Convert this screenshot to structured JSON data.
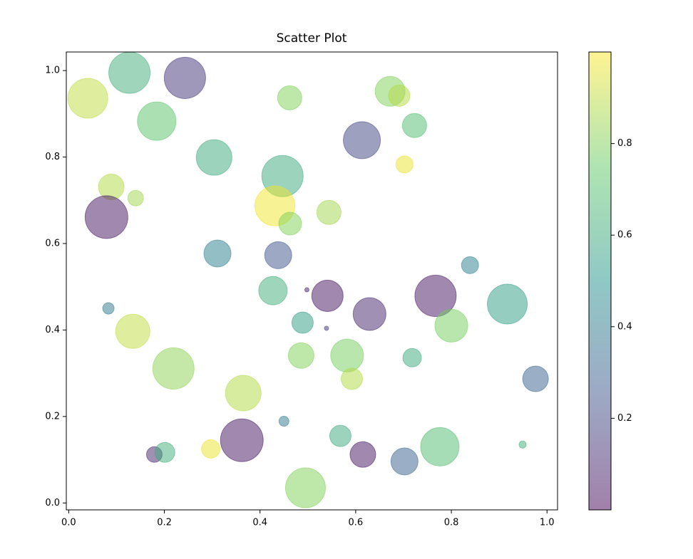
{
  "chart_data": {
    "type": "scatter",
    "title": "Scatter Plot",
    "x": [
      0.04,
      0.127,
      0.243,
      0.462,
      0.672,
      0.691,
      0.723,
      0.184,
      0.613,
      0.304,
      0.447,
      0.702,
      0.089,
      0.14,
      0.431,
      0.079,
      0.544,
      0.463,
      0.311,
      0.438,
      0.839,
      0.427,
      0.498,
      0.541,
      0.767,
      0.917,
      0.083,
      0.629,
      0.489,
      0.8,
      0.134,
      0.539,
      0.486,
      0.582,
      0.718,
      0.976,
      0.219,
      0.592,
      0.365,
      0.45,
      0.568,
      0.362,
      0.179,
      0.201,
      0.297,
      0.615,
      0.776,
      0.949,
      0.702,
      0.495
    ],
    "y": [
      0.936,
      0.995,
      0.983,
      0.937,
      0.952,
      0.942,
      0.873,
      0.883,
      0.839,
      0.799,
      0.756,
      0.783,
      0.731,
      0.705,
      0.687,
      0.661,
      0.672,
      0.646,
      0.577,
      0.573,
      0.55,
      0.491,
      0.493,
      0.479,
      0.479,
      0.46,
      0.45,
      0.437,
      0.417,
      0.41,
      0.397,
      0.404,
      0.341,
      0.341,
      0.336,
      0.287,
      0.311,
      0.287,
      0.254,
      0.189,
      0.155,
      0.145,
      0.112,
      0.117,
      0.125,
      0.112,
      0.13,
      0.135,
      0.096,
      0.035
    ],
    "sizes": [
      1628,
      1746,
      1746,
      600,
      915,
      467,
      600,
      1513,
      1403,
      1298,
      1746,
      299,
      673,
      251,
      1628,
      1868,
      600,
      531,
      749,
      749,
      299,
      830,
      19,
      1005,
      1746,
      1628,
      133,
      1098,
      467,
      1098,
      1196,
      19,
      673,
      1098,
      351,
      673,
      1746,
      467,
      1298,
      102,
      467,
      1868,
      251,
      407,
      351,
      673,
      1513,
      52,
      749,
      1628
    ],
    "colors": [
      0.9,
      0.62,
      0.15,
      0.8,
      0.8,
      0.88,
      0.68,
      0.72,
      0.2,
      0.6,
      0.6,
      0.97,
      0.88,
      0.85,
      0.98,
      0.05,
      0.85,
      0.8,
      0.42,
      0.25,
      0.42,
      0.62,
      0.1,
      0.05,
      0.05,
      0.55,
      0.4,
      0.1,
      0.55,
      0.78,
      0.9,
      0.15,
      0.8,
      0.78,
      0.6,
      0.3,
      0.82,
      0.88,
      0.88,
      0.4,
      0.6,
      0.05,
      0.1,
      0.62,
      0.97,
      0.05,
      0.68,
      0.62,
      0.3,
      0.8
    ],
    "colormap": [
      "#440154",
      "#3b528b",
      "#21918c",
      "#5ec962",
      "#fde725"
    ],
    "alpha": 0.5,
    "xlim": [
      -0.005,
      1.022
    ],
    "ylim": [
      -0.016,
      1.043
    ],
    "xticks": [
      {
        "value": 0,
        "label": "0.0"
      },
      {
        "value": 0.2,
        "label": "0.2"
      },
      {
        "value": 0.4,
        "label": "0.4"
      },
      {
        "value": 0.6,
        "label": "0.6"
      },
      {
        "value": 0.8,
        "label": "0.8"
      },
      {
        "value": 1,
        "label": "1.0"
      }
    ],
    "yticks": [
      {
        "value": 0,
        "label": "0.0"
      },
      {
        "value": 0.2,
        "label": "0.2"
      },
      {
        "value": 0.4,
        "label": "0.4"
      },
      {
        "value": 0.6,
        "label": "0.6"
      },
      {
        "value": 0.8,
        "label": "0.8"
      },
      {
        "value": 1,
        "label": "1.0"
      }
    ],
    "clim": [
      0.0,
      1.0
    ],
    "cticks": [
      0.2,
      0.4,
      0.6,
      0.8
    ]
  }
}
